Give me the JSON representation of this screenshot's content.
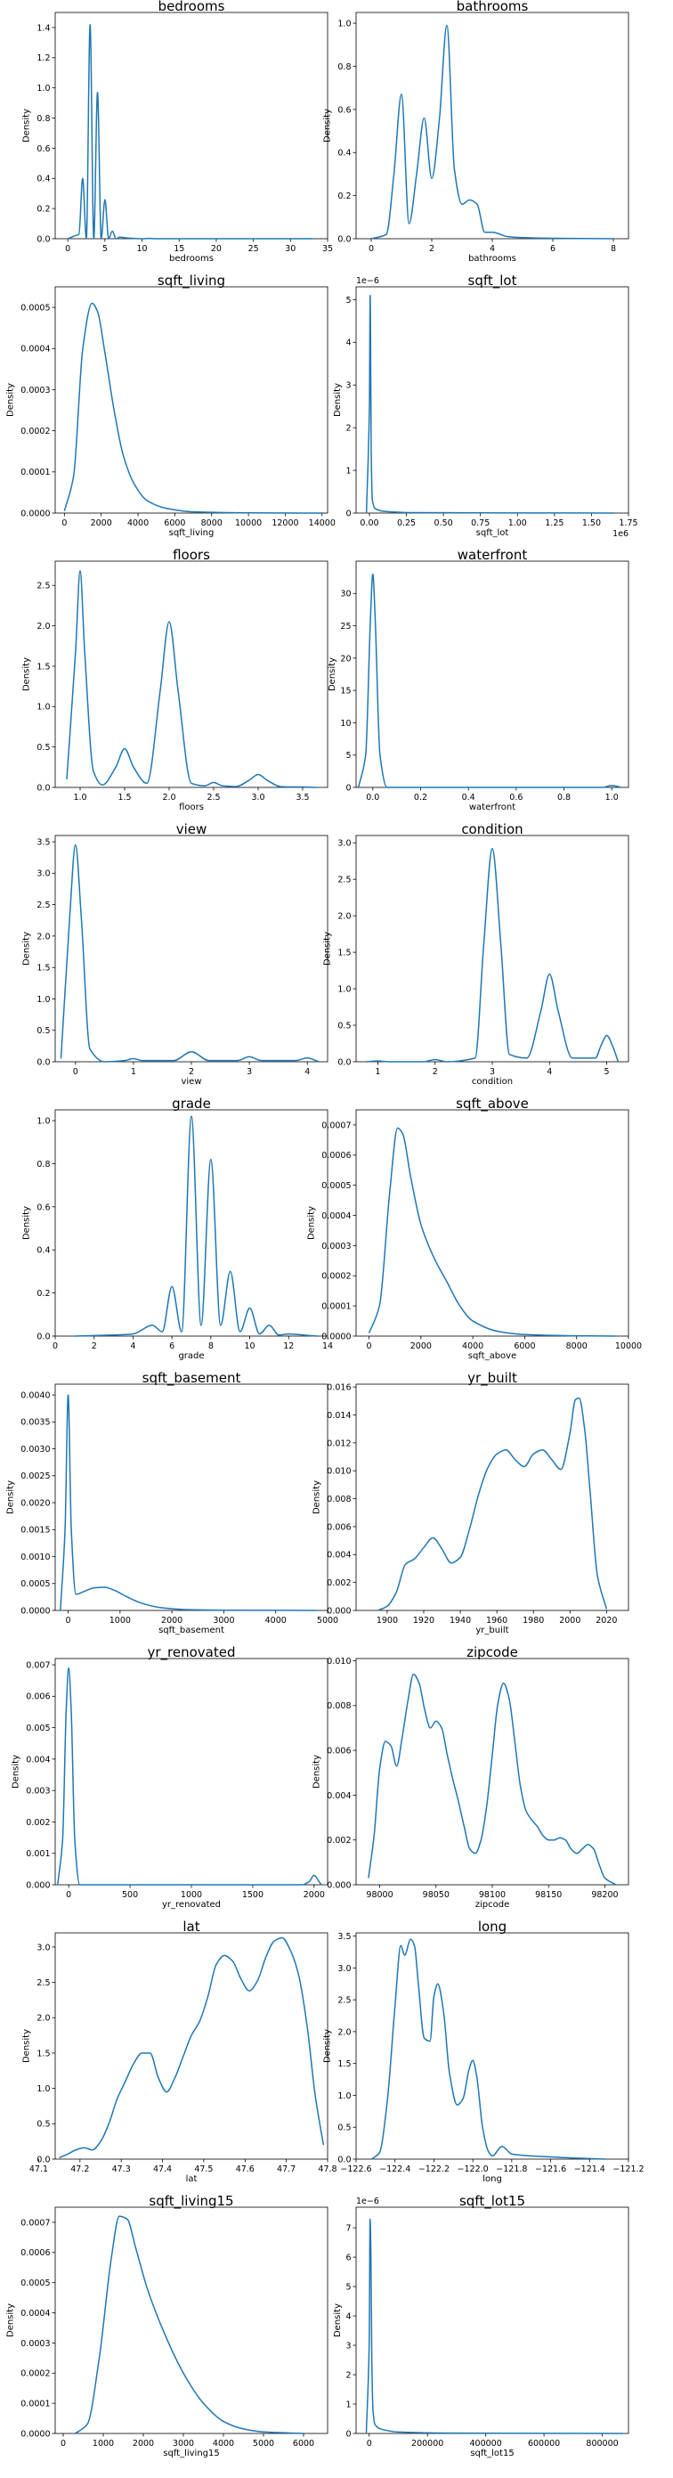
{
  "figure": {
    "ylabel_default": "Density",
    "line_color": "#1f77b4"
  },
  "chart_data": [
    {
      "type": "line",
      "title": "bedrooms",
      "xlabel": "bedrooms",
      "ylabel": "Density",
      "xlim": [
        -1.7,
        35
      ],
      "ylim": [
        0,
        1.5
      ],
      "xticks": [
        0,
        5,
        10,
        15,
        20,
        25,
        30,
        35
      ],
      "yticks": [
        0.0,
        0.2,
        0.4,
        0.6,
        0.8,
        1.0,
        1.2,
        1.4
      ],
      "x": [
        0,
        1,
        1.5,
        2,
        2.5,
        3,
        3.5,
        4,
        4.5,
        5,
        5.5,
        6,
        6.5,
        7,
        8,
        10,
        11,
        12,
        33
      ],
      "y": [
        0,
        0.02,
        0.03,
        0.4,
        0.0,
        1.42,
        0.0,
        0.97,
        0.0,
        0.26,
        0.0,
        0.05,
        0.0,
        0.01,
        0.005,
        0,
        0.002,
        0,
        0
      ]
    },
    {
      "type": "line",
      "title": "bathrooms",
      "xlabel": "bathrooms",
      "ylabel": "Density",
      "xlim": [
        -0.5,
        8.5
      ],
      "ylim": [
        0,
        1.05
      ],
      "xticks": [
        0,
        2,
        4,
        6,
        8
      ],
      "yticks": [
        0.0,
        0.2,
        0.4,
        0.6,
        0.8,
        1.0
      ],
      "x": [
        0,
        0.5,
        0.75,
        1.0,
        1.25,
        1.5,
        1.75,
        2.0,
        2.25,
        2.5,
        2.75,
        3.0,
        3.25,
        3.5,
        3.75,
        4.0,
        4.5,
        5.0,
        6.0,
        8.0
      ],
      "y": [
        0,
        0.02,
        0.3,
        0.67,
        0.07,
        0.3,
        0.56,
        0.28,
        0.55,
        0.99,
        0.32,
        0.16,
        0.18,
        0.16,
        0.03,
        0.03,
        0.01,
        0.005,
        0.002,
        0
      ]
    },
    {
      "type": "line",
      "title": "sqft_living",
      "xlabel": "sqft_living",
      "ylabel": "Density",
      "xlim": [
        -500,
        14300
      ],
      "ylim": [
        0,
        0.00055
      ],
      "xticks": [
        0,
        2000,
        4000,
        6000,
        8000,
        10000,
        12000,
        14000
      ],
      "yticks": [
        0.0,
        0.0001,
        0.0002,
        0.0003,
        0.0004,
        0.0005
      ],
      "x": [
        0,
        500,
        1000,
        1500,
        1800,
        2200,
        2700,
        3200,
        3800,
        4500,
        5500,
        7000,
        10000,
        14000
      ],
      "y": [
        5e-06,
        9e-05,
        0.0004,
        0.00051,
        0.00049,
        0.00039,
        0.00025,
        0.00014,
        7e-05,
        3e-05,
        1.2e-05,
        3e-06,
        5e-07,
        0
      ]
    },
    {
      "type": "line",
      "title": "sqft_lot",
      "xlabel": "sqft_lot",
      "ylabel": "Density",
      "xlim": [
        -90000,
        1750000
      ],
      "ylim": [
        0,
        5.3e-06
      ],
      "xticks": [
        0,
        250000,
        500000,
        750000,
        1000000,
        1250000,
        1500000,
        1750000
      ],
      "yticks": [
        0,
        1e-06,
        2e-06,
        3e-06,
        4e-06,
        5e-06
      ],
      "x": [
        -20000,
        0,
        5000,
        8000,
        12000,
        20000,
        40000,
        100000,
        300000,
        1650000
      ],
      "y": [
        0,
        2.5e-06,
        5.1e-06,
        4e-06,
        1.5e-06,
        3e-07,
        1e-07,
        4e-08,
        1e-08,
        0
      ]
    },
    {
      "type": "line",
      "title": "floors",
      "xlabel": "floors",
      "ylabel": "Density",
      "xlim": [
        0.72,
        3.78
      ],
      "ylim": [
        0,
        2.8
      ],
      "xticks": [
        1.0,
        1.5,
        2.0,
        2.5,
        3.0,
        3.5
      ],
      "yticks": [
        0.0,
        0.5,
        1.0,
        1.5,
        2.0,
        2.5
      ],
      "x": [
        0.85,
        0.95,
        1.0,
        1.05,
        1.15,
        1.25,
        1.4,
        1.5,
        1.6,
        1.75,
        1.9,
        2.0,
        2.1,
        2.25,
        2.4,
        2.5,
        2.6,
        2.75,
        2.9,
        3.0,
        3.1,
        3.25,
        3.4,
        3.5,
        3.65
      ],
      "y": [
        0.1,
        1.7,
        2.68,
        1.7,
        0.2,
        0.03,
        0.25,
        0.48,
        0.25,
        0.05,
        1.2,
        2.05,
        1.2,
        0.05,
        0.02,
        0.06,
        0.02,
        0.01,
        0.09,
        0.16,
        0.09,
        0.01,
        0.005,
        0.005,
        0
      ]
    },
    {
      "type": "line",
      "title": "waterfront",
      "xlabel": "waterfront",
      "ylabel": "Density",
      "xlim": [
        -0.07,
        1.07
      ],
      "ylim": [
        0,
        35
      ],
      "xticks": [
        0.0,
        0.2,
        0.4,
        0.6,
        0.8,
        1.0
      ],
      "yticks": [
        0,
        5,
        10,
        15,
        20,
        25,
        30
      ],
      "x": [
        -0.06,
        -0.03,
        -0.01,
        0.0,
        0.01,
        0.03,
        0.06,
        0.1,
        0.96,
        1.0,
        1.04
      ],
      "y": [
        0,
        5,
        26,
        33,
        26,
        5,
        0,
        0,
        0,
        0.3,
        0
      ]
    },
    {
      "type": "line",
      "title": "view",
      "xlabel": "view",
      "ylabel": "Density",
      "xlim": [
        -0.35,
        4.35
      ],
      "ylim": [
        0,
        3.6
      ],
      "xticks": [
        0,
        1,
        2,
        3,
        4
      ],
      "yticks": [
        0.0,
        0.5,
        1.0,
        1.5,
        2.0,
        2.5,
        3.0,
        3.5
      ],
      "x": [
        -0.25,
        -0.1,
        0.0,
        0.1,
        0.25,
        0.5,
        0.85,
        1.0,
        1.15,
        1.7,
        2.0,
        2.3,
        2.8,
        3.0,
        3.2,
        3.8,
        4.0,
        4.2
      ],
      "y": [
        0.05,
        2.3,
        3.45,
        2.3,
        0.2,
        0.0,
        0.02,
        0.05,
        0.02,
        0.02,
        0.16,
        0.02,
        0.02,
        0.08,
        0.02,
        0.02,
        0.06,
        0.0
      ]
    },
    {
      "type": "line",
      "title": "condition",
      "xlabel": "condition",
      "ylabel": "Density",
      "xlim": [
        0.62,
        5.38
      ],
      "ylim": [
        0,
        3.1
      ],
      "xticks": [
        1,
        2,
        3,
        4,
        5
      ],
      "yticks": [
        0.0,
        0.5,
        1.0,
        1.5,
        2.0,
        2.5,
        3.0
      ],
      "x": [
        0.8,
        1.0,
        1.2,
        1.8,
        2.0,
        2.2,
        2.7,
        2.85,
        3.0,
        3.15,
        3.3,
        3.6,
        3.85,
        4.0,
        4.15,
        4.4,
        4.8,
        4.9,
        5.0,
        5.1,
        5.2
      ],
      "y": [
        0.0,
        0.01,
        0.0,
        0.0,
        0.03,
        0.0,
        0.05,
        1.6,
        2.92,
        1.6,
        0.1,
        0.05,
        0.7,
        1.2,
        0.7,
        0.05,
        0.05,
        0.22,
        0.36,
        0.22,
        0.0
      ]
    },
    {
      "type": "line",
      "title": "grade",
      "xlabel": "grade",
      "ylabel": "Density",
      "xlim": [
        0,
        14
      ],
      "ylim": [
        0,
        1.05
      ],
      "xticks": [
        0,
        2,
        4,
        6,
        8,
        10,
        12,
        14
      ],
      "yticks": [
        0.0,
        0.2,
        0.4,
        0.6,
        0.8,
        1.0
      ],
      "x": [
        1.0,
        3.0,
        4.0,
        5.0,
        5.5,
        6.0,
        6.5,
        7.0,
        7.5,
        8.0,
        8.5,
        9.0,
        9.5,
        10.0,
        10.5,
        11.0,
        11.5,
        12.0,
        13.0,
        13.5
      ],
      "y": [
        0,
        0.005,
        0.01,
        0.05,
        0.02,
        0.23,
        0.02,
        1.02,
        0.05,
        0.82,
        0.05,
        0.3,
        0.02,
        0.13,
        0.01,
        0.05,
        0.005,
        0.01,
        0.003,
        0
      ]
    },
    {
      "type": "line",
      "title": "sqft_above",
      "xlabel": "sqft_above",
      "ylabel": "Density",
      "xlim": [
        -500,
        10000
      ],
      "ylim": [
        0,
        0.00075
      ],
      "xticks": [
        0,
        2000,
        4000,
        6000,
        8000,
        10000
      ],
      "yticks": [
        0.0,
        0.0001,
        0.0002,
        0.0003,
        0.0004,
        0.0005,
        0.0006,
        0.0007
      ],
      "x": [
        0,
        400,
        800,
        1100,
        1300,
        1600,
        2000,
        2500,
        3000,
        3500,
        4000,
        5000,
        6000,
        8000,
        9500
      ],
      "y": [
        1e-05,
        0.0001,
        0.00048,
        0.00069,
        0.00067,
        0.00053,
        0.00037,
        0.00026,
        0.00018,
        0.0001,
        5e-05,
        1.5e-05,
        5e-06,
        1e-06,
        0
      ]
    },
    {
      "type": "line",
      "title": "sqft_basement",
      "xlabel": "sqft_basement",
      "ylabel": "Density",
      "xlim": [
        -250,
        5000
      ],
      "ylim": [
        0,
        0.0042
      ],
      "xticks": [
        0,
        1000,
        2000,
        3000,
        4000,
        5000
      ],
      "yticks": [
        0.0,
        0.0005,
        0.001,
        0.0015,
        0.002,
        0.0025,
        0.003,
        0.0035,
        0.004
      ],
      "x": [
        -150,
        -60,
        0,
        60,
        150,
        300,
        500,
        700,
        900,
        1100,
        1400,
        1800,
        2300,
        3000,
        4800
      ],
      "y": [
        0,
        0.0015,
        0.004,
        0.0015,
        0.0003,
        0.00035,
        0.00042,
        0.00043,
        0.00037,
        0.00027,
        0.00014,
        5e-05,
        1.5e-05,
        5e-06,
        0
      ]
    },
    {
      "type": "line",
      "title": "yr_built",
      "xlabel": "yr_built",
      "ylabel": "Density",
      "xlim": [
        1883,
        2032
      ],
      "ylim": [
        0,
        0.0162
      ],
      "xticks": [
        1900,
        1920,
        1940,
        1960,
        1980,
        2000,
        2020
      ],
      "yticks": [
        0.0,
        0.002,
        0.004,
        0.006,
        0.008,
        0.01,
        0.012,
        0.014,
        0.016
      ],
      "x": [
        1895,
        1900,
        1905,
        1910,
        1915,
        1920,
        1925,
        1930,
        1935,
        1940,
        1945,
        1950,
        1955,
        1960,
        1965,
        1970,
        1975,
        1980,
        1985,
        1990,
        1995,
        2000,
        2003,
        2005,
        2008,
        2011,
        2015,
        2020
      ],
      "y": [
        0,
        0.0003,
        0.0013,
        0.0033,
        0.0037,
        0.0045,
        0.0052,
        0.0044,
        0.0034,
        0.0038,
        0.0058,
        0.0083,
        0.0102,
        0.0112,
        0.0115,
        0.0108,
        0.0103,
        0.0112,
        0.0115,
        0.0108,
        0.0101,
        0.0127,
        0.0151,
        0.0152,
        0.013,
        0.0085,
        0.0025,
        0.0001
      ]
    },
    {
      "type": "line",
      "title": "yr_renovated",
      "xlabel": "yr_renovated",
      "ylabel": "Density",
      "xlim": [
        -110,
        2110
      ],
      "ylim": [
        0,
        0.0072
      ],
      "xticks": [
        0,
        500,
        1000,
        1500,
        2000
      ],
      "yticks": [
        0.0,
        0.001,
        0.002,
        0.003,
        0.004,
        0.005,
        0.006,
        0.007
      ],
      "x": [
        -90,
        -50,
        -20,
        0,
        20,
        50,
        90,
        150,
        1900,
        1960,
        2000,
        2040,
        2060
      ],
      "y": [
        0,
        0.0014,
        0.0056,
        0.0069,
        0.0056,
        0.0014,
        0,
        0,
        0,
        0.0001,
        0.0003,
        0.0001,
        0
      ]
    },
    {
      "type": "line",
      "title": "zipcode",
      "xlabel": "zipcode",
      "ylabel": "Density",
      "xlim": [
        97979,
        98221
      ],
      "ylim": [
        0,
        0.0101
      ],
      "xticks": [
        98000,
        98050,
        98100,
        98150,
        98200
      ],
      "yticks": [
        0.0,
        0.002,
        0.004,
        0.006,
        0.008,
        0.01
      ],
      "x": [
        97990,
        97995,
        98000,
        98005,
        98010,
        98015,
        98020,
        98025,
        98030,
        98035,
        98040,
        98045,
        98050,
        98055,
        98060,
        98065,
        98070,
        98075,
        98080,
        98085,
        98090,
        98095,
        98100,
        98105,
        98110,
        98115,
        98120,
        98125,
        98130,
        98135,
        98140,
        98145,
        98150,
        98155,
        98160,
        98165,
        98170,
        98175,
        98180,
        98185,
        98190,
        98195,
        98200,
        98210
      ],
      "y": [
        0.0003,
        0.0022,
        0.0052,
        0.0064,
        0.0062,
        0.0053,
        0.0066,
        0.0082,
        0.0094,
        0.009,
        0.0078,
        0.007,
        0.0073,
        0.007,
        0.0058,
        0.0047,
        0.0037,
        0.0026,
        0.0016,
        0.0014,
        0.002,
        0.0035,
        0.0058,
        0.0081,
        0.009,
        0.0083,
        0.0064,
        0.0044,
        0.0033,
        0.0029,
        0.0026,
        0.0022,
        0.002,
        0.002,
        0.0021,
        0.002,
        0.0016,
        0.0014,
        0.0016,
        0.0018,
        0.0016,
        0.0009,
        0.0003,
        0
      ]
    },
    {
      "type": "line",
      "title": "lat",
      "xlabel": "lat",
      "ylabel": "Density",
      "xlim": [
        47.14,
        47.8
      ],
      "ylim": [
        0,
        3.2
      ],
      "xticks": [
        47.1,
        47.2,
        47.3,
        47.4,
        47.5,
        47.6,
        47.7,
        47.8
      ],
      "yticks": [
        0.0,
        0.5,
        1.0,
        1.5,
        2.0,
        2.5,
        3.0
      ],
      "x": [
        47.15,
        47.17,
        47.19,
        47.21,
        47.23,
        47.25,
        47.27,
        47.29,
        47.31,
        47.33,
        47.35,
        47.37,
        47.39,
        47.41,
        47.43,
        47.45,
        47.47,
        47.49,
        47.51,
        47.53,
        47.55,
        47.57,
        47.59,
        47.61,
        47.63,
        47.65,
        47.67,
        47.69,
        47.71,
        47.73,
        47.75,
        47.77,
        47.79
      ],
      "y": [
        0.02,
        0.07,
        0.13,
        0.16,
        0.13,
        0.25,
        0.5,
        0.85,
        1.1,
        1.35,
        1.5,
        1.5,
        1.15,
        0.95,
        1.15,
        1.45,
        1.75,
        1.95,
        2.3,
        2.75,
        2.88,
        2.8,
        2.55,
        2.38,
        2.52,
        2.85,
        3.08,
        3.13,
        2.95,
        2.6,
        1.9,
        0.9,
        0.2
      ]
    },
    {
      "type": "line",
      "title": "long",
      "xlabel": "long",
      "ylabel": "Density",
      "xlim": [
        -122.6,
        -121.2
      ],
      "ylim": [
        0,
        3.55
      ],
      "xticks": [
        -122.6,
        -122.4,
        -122.2,
        -122.0,
        -121.8,
        -121.6,
        -121.4,
        -121.2
      ],
      "yticks": [
        0.0,
        0.5,
        1.0,
        1.5,
        2.0,
        2.5,
        3.0,
        3.5
      ],
      "x": [
        -122.52,
        -122.48,
        -122.44,
        -122.4,
        -122.37,
        -122.35,
        -122.32,
        -122.3,
        -122.28,
        -122.25,
        -122.22,
        -122.2,
        -122.18,
        -122.15,
        -122.12,
        -122.08,
        -122.05,
        -122.02,
        -122.0,
        -121.98,
        -121.95,
        -121.92,
        -121.9,
        -121.85,
        -121.8,
        -121.7,
        -121.5,
        -121.32
      ],
      "y": [
        0.0,
        0.1,
        0.9,
        2.4,
        3.35,
        3.2,
        3.45,
        3.35,
        2.75,
        1.9,
        1.85,
        2.55,
        2.75,
        2.3,
        1.35,
        0.85,
        0.95,
        1.4,
        1.55,
        1.3,
        0.5,
        0.12,
        0.05,
        0.2,
        0.08,
        0.05,
        0.02,
        0
      ]
    },
    {
      "type": "line",
      "title": "sqft_living15",
      "xlabel": "sqft_living15",
      "ylabel": "Density",
      "xlim": [
        -200,
        6600
      ],
      "ylim": [
        0,
        0.00075
      ],
      "xticks": [
        0,
        1000,
        2000,
        3000,
        4000,
        5000,
        6000
      ],
      "yticks": [
        0.0,
        0.0001,
        0.0002,
        0.0003,
        0.0004,
        0.0005,
        0.0006,
        0.0007
      ],
      "x": [
        300,
        600,
        900,
        1200,
        1400,
        1600,
        1800,
        2100,
        2500,
        3000,
        3500,
        4000,
        4500,
        5000,
        6000
      ],
      "y": [
        0,
        3e-05,
        0.00025,
        0.00058,
        0.00072,
        0.00071,
        0.00062,
        0.00048,
        0.00034,
        0.0002,
        0.0001,
        4e-05,
        1.5e-05,
        5e-06,
        0
      ]
    },
    {
      "type": "line",
      "title": "sqft_lot15",
      "xlabel": "sqft_lot15",
      "ylabel": "Density",
      "xlim": [
        -45000,
        890000
      ],
      "ylim": [
        0,
        7.7e-06
      ],
      "xticks": [
        0,
        200000,
        400000,
        600000,
        800000
      ],
      "yticks": [
        0,
        1e-06,
        2e-06,
        3e-06,
        4e-06,
        5e-06,
        6e-06,
        7e-06
      ],
      "x": [
        -10000,
        0,
        3000,
        6000,
        9000,
        13000,
        20000,
        40000,
        100000,
        300000,
        870000
      ],
      "y": [
        0,
        3e-06,
        7.3e-06,
        6e-06,
        2.5e-06,
        8e-07,
        3e-07,
        1.5e-07,
        5e-08,
        1e-08,
        0
      ]
    }
  ]
}
